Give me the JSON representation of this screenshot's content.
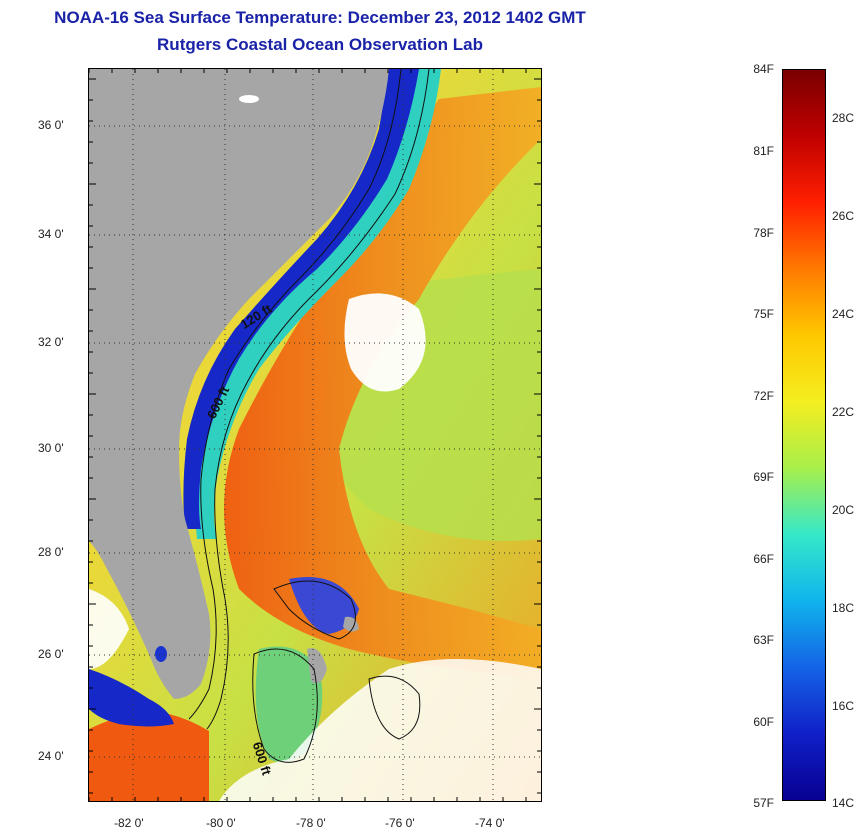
{
  "title": "NOAA-16 Sea Surface Temperature:  December 23, 2012 1402 GMT",
  "subtitle": "Rutgers Coastal Ocean Observation Lab",
  "map": {
    "lat_labels": [
      "36 0'",
      "34 0'",
      "32 0'",
      "30 0'",
      "28 0'",
      "26 0'",
      "24 0'"
    ],
    "lon_labels": [
      "-82 0'",
      "-80 0'",
      "-78 0'",
      "-76 0'",
      "-74 0'"
    ],
    "contour_labels": [
      "120 ft",
      "600 ft",
      "600 ft"
    ],
    "colors": {
      "land": "#a6a6a6",
      "cloud": "#ffffff",
      "warm_water": "#f08a1c",
      "cool_shelf": "#1628c8"
    }
  },
  "colorbar": {
    "f_labels": [
      "84F",
      "81F",
      "78F",
      "75F",
      "72F",
      "69F",
      "66F",
      "63F",
      "60F",
      "57F"
    ],
    "c_labels": [
      "28C",
      "26C",
      "24C",
      "22C",
      "20C",
      "18C",
      "16C",
      "14C"
    ],
    "gradient_stops": [
      "#7a0000",
      "#c00000",
      "#ff2000",
      "#ff7a00",
      "#ffc800",
      "#f4ee20",
      "#a8ef4a",
      "#36e8c8",
      "#10b4ec",
      "#1464e6",
      "#1020c8",
      "#080092"
    ]
  }
}
